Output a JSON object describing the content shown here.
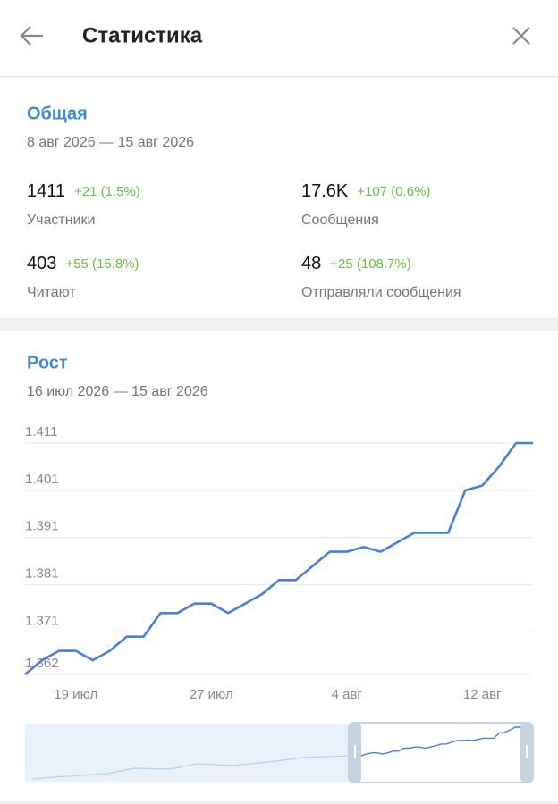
{
  "header": {
    "title": "Статистика"
  },
  "overview": {
    "title": "Общая",
    "period": "8 авг 2026 — 15 авг 2026",
    "stats": [
      {
        "value": "1411",
        "delta": "+21 (1.5%)",
        "label": "Участники"
      },
      {
        "value": "17.6K",
        "delta": "+107 (0.6%)",
        "label": "Сообщения"
      },
      {
        "value": "403",
        "delta": "+55 (15.8%)",
        "label": "Читают"
      },
      {
        "value": "48",
        "delta": "+25 (108.7%)",
        "label": "Отправляли сообщения"
      }
    ]
  },
  "growth": {
    "title": "Рост",
    "period": "16 июл 2026 — 15 авг 2026"
  },
  "chart_data": {
    "type": "line",
    "color": "#4a7fd8",
    "grid": true,
    "categories": [
      null,
      null,
      null,
      "19 июл",
      null,
      null,
      null,
      null,
      null,
      null,
      null,
      "27 июл",
      null,
      null,
      null,
      null,
      null,
      null,
      null,
      "4 авг",
      null,
      null,
      null,
      null,
      null,
      null,
      null,
      "12 авг",
      null,
      null,
      null
    ],
    "values": [
      1362,
      1365,
      1367,
      1367,
      1365,
      1367,
      1370,
      1370,
      1375,
      1375,
      1377,
      1377,
      1375,
      1377,
      1379,
      1382,
      1382,
      1385,
      1388,
      1388,
      1389,
      1388,
      1390,
      1392,
      1392,
      1392,
      1401,
      1402,
      1406,
      1411,
      1411
    ],
    "ylim": [
      1362,
      1411
    ],
    "yticks": [
      {
        "value": 1362,
        "label": "1.362"
      },
      {
        "value": 1371,
        "label": "1.371"
      },
      {
        "value": 1381,
        "label": "1.381"
      },
      {
        "value": 1391,
        "label": "1.391"
      },
      {
        "value": 1401,
        "label": "1.401"
      },
      {
        "value": 1411,
        "label": "1.411"
      }
    ]
  }
}
